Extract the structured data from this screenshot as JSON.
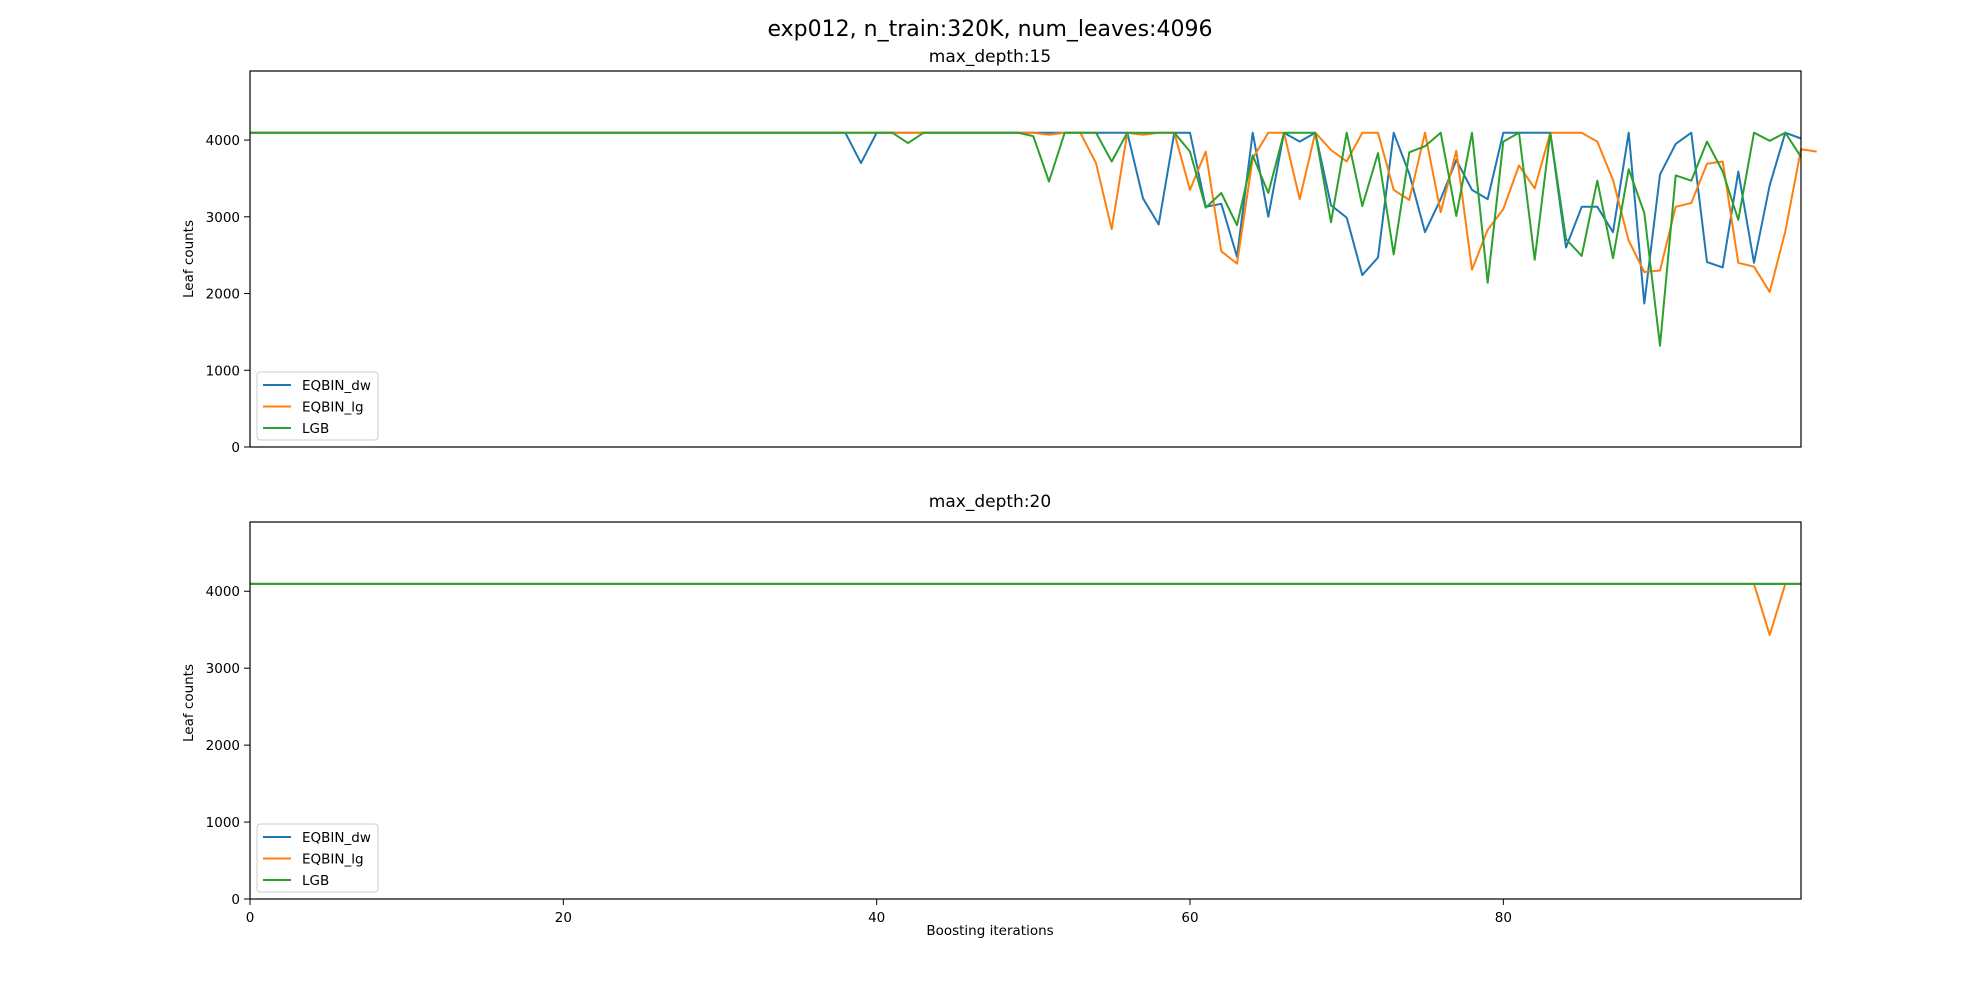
{
  "figure": {
    "title": "exp012, n_train:320K, num_leaves:4096"
  },
  "chart_data": [
    {
      "type": "line",
      "title": "max_depth:15",
      "xlabel": "",
      "ylabel": "Leaf counts",
      "xlim": [
        0,
        99
      ],
      "ylim": [
        0,
        4900
      ],
      "xticks": [],
      "yticks": [
        0,
        1000,
        2000,
        3000,
        4000
      ],
      "legend_loc": "lower left",
      "x_start": 0,
      "series": [
        {
          "name": "EQBIN_dw",
          "color": "#1f77b4",
          "values": [
            4096,
            4096,
            4096,
            4096,
            4096,
            4096,
            4096,
            4096,
            4096,
            4096,
            4096,
            4096,
            4096,
            4096,
            4096,
            4096,
            4096,
            4096,
            4096,
            4096,
            4096,
            4096,
            4096,
            4096,
            4096,
            4096,
            4096,
            4096,
            4096,
            4096,
            4096,
            4096,
            4096,
            4096,
            4096,
            4096,
            4096,
            4096,
            4096,
            3700,
            4096,
            4096,
            4096,
            4096,
            4096,
            4096,
            4096,
            4096,
            4096,
            4096,
            4096,
            4096,
            4096,
            4096,
            4096,
            4096,
            4096,
            3240,
            2900,
            4096,
            4096,
            3130,
            3170,
            2480,
            4096,
            3000,
            4096,
            3980,
            4096,
            3150,
            2990,
            2240,
            2470,
            4096,
            3560,
            2800,
            3230,
            3740,
            3350,
            3230,
            4096,
            4096,
            4096,
            4096,
            2600,
            3130,
            3130,
            2800,
            4096,
            1870,
            3550,
            3950,
            4096,
            2410,
            2340,
            3590,
            2400,
            3410,
            4096,
            4020
          ]
        },
        {
          "name": "EQBIN_lg",
          "color": "#ff7f0e",
          "values": [
            4096,
            4096,
            4096,
            4096,
            4096,
            4096,
            4096,
            4096,
            4096,
            4096,
            4096,
            4096,
            4096,
            4096,
            4096,
            4096,
            4096,
            4096,
            4096,
            4096,
            4096,
            4096,
            4096,
            4096,
            4096,
            4096,
            4096,
            4096,
            4096,
            4096,
            4096,
            4096,
            4096,
            4096,
            4096,
            4096,
            4096,
            4096,
            4096,
            4096,
            4096,
            4096,
            4096,
            4096,
            4096,
            4096,
            4096,
            4096,
            4096,
            4096,
            4096,
            4070,
            4096,
            4096,
            3700,
            2840,
            4096,
            4070,
            4096,
            4096,
            3350,
            3850,
            2550,
            2390,
            3760,
            4096,
            4096,
            3230,
            4096,
            3870,
            3720,
            4096,
            4096,
            3350,
            3220,
            4096,
            3060,
            3860,
            2310,
            2830,
            3100,
            3670,
            3370,
            4096,
            4096,
            4096,
            3980,
            3480,
            2690,
            2280,
            2300,
            3130,
            3180,
            3690,
            3720,
            2400,
            2350,
            2020,
            2810,
            3880,
            3850
          ]
        },
        {
          "name": "LGB",
          "color": "#2ca02c",
          "values": [
            4096,
            4096,
            4096,
            4096,
            4096,
            4096,
            4096,
            4096,
            4096,
            4096,
            4096,
            4096,
            4096,
            4096,
            4096,
            4096,
            4096,
            4096,
            4096,
            4096,
            4096,
            4096,
            4096,
            4096,
            4096,
            4096,
            4096,
            4096,
            4096,
            4096,
            4096,
            4096,
            4096,
            4096,
            4096,
            4096,
            4096,
            4096,
            4096,
            4096,
            4096,
            4096,
            3960,
            4096,
            4096,
            4096,
            4096,
            4096,
            4096,
            4096,
            4050,
            3460,
            4096,
            4096,
            4096,
            3720,
            4096,
            4096,
            4096,
            4096,
            3850,
            3120,
            3310,
            2890,
            3800,
            3310,
            4096,
            4096,
            4096,
            2930,
            4096,
            3140,
            3830,
            2510,
            3840,
            3920,
            4096,
            3010,
            4096,
            2140,
            3980,
            4096,
            2440,
            4096,
            2710,
            2490,
            3470,
            2460,
            3620,
            3050,
            1320,
            3540,
            3470,
            3980,
            3590,
            2960,
            4096,
            3990,
            4096,
            3780
          ]
        }
      ]
    },
    {
      "type": "line",
      "title": "max_depth:20",
      "xlabel": "Boosting iterations",
      "ylabel": "Leaf counts",
      "xlim": [
        0,
        99
      ],
      "ylim": [
        0,
        4900
      ],
      "xticks": [
        0,
        20,
        40,
        60,
        80
      ],
      "yticks": [
        0,
        1000,
        2000,
        3000,
        4000
      ],
      "legend_loc": "lower left",
      "x_start": 0,
      "series": [
        {
          "name": "EQBIN_dw",
          "color": "#1f77b4",
          "values": [
            4096,
            4096,
            4096,
            4096,
            4096,
            4096,
            4096,
            4096,
            4096,
            4096,
            4096,
            4096,
            4096,
            4096,
            4096,
            4096,
            4096,
            4096,
            4096,
            4096,
            4096,
            4096,
            4096,
            4096,
            4096,
            4096,
            4096,
            4096,
            4096,
            4096,
            4096,
            4096,
            4096,
            4096,
            4096,
            4096,
            4096,
            4096,
            4096,
            4096,
            4096,
            4096,
            4096,
            4096,
            4096,
            4096,
            4096,
            4096,
            4096,
            4096,
            4096,
            4096,
            4096,
            4096,
            4096,
            4096,
            4096,
            4096,
            4096,
            4096,
            4096,
            4096,
            4096,
            4096,
            4096,
            4096,
            4096,
            4096,
            4096,
            4096,
            4096,
            4096,
            4096,
            4096,
            4096,
            4096,
            4096,
            4096,
            4096,
            4096,
            4096,
            4096,
            4096,
            4096,
            4096,
            4096,
            4096,
            4096,
            4096,
            4096,
            4096,
            4096,
            4096,
            4096,
            4096,
            4096,
            4096,
            4096,
            4096,
            4096
          ]
        },
        {
          "name": "EQBIN_lg",
          "color": "#ff7f0e",
          "values": [
            4096,
            4096,
            4096,
            4096,
            4096,
            4096,
            4096,
            4096,
            4096,
            4096,
            4096,
            4096,
            4096,
            4096,
            4096,
            4096,
            4096,
            4096,
            4096,
            4096,
            4096,
            4096,
            4096,
            4096,
            4096,
            4096,
            4096,
            4096,
            4096,
            4096,
            4096,
            4096,
            4096,
            4096,
            4096,
            4096,
            4096,
            4096,
            4096,
            4096,
            4096,
            4096,
            4096,
            4096,
            4096,
            4096,
            4096,
            4096,
            4096,
            4096,
            4096,
            4096,
            4096,
            4096,
            4096,
            4096,
            4096,
            4096,
            4096,
            4096,
            4096,
            4096,
            4096,
            4096,
            4096,
            4096,
            4096,
            4096,
            4096,
            4096,
            4096,
            4096,
            4096,
            4096,
            4096,
            4096,
            4096,
            4096,
            4096,
            4096,
            4096,
            4096,
            4096,
            4096,
            4096,
            4096,
            4096,
            4096,
            4096,
            4096,
            4096,
            4096,
            4096,
            4096,
            4096,
            4096,
            4096,
            3430,
            4096,
            4096
          ]
        },
        {
          "name": "LGB",
          "color": "#2ca02c",
          "values": [
            4096,
            4096,
            4096,
            4096,
            4096,
            4096,
            4096,
            4096,
            4096,
            4096,
            4096,
            4096,
            4096,
            4096,
            4096,
            4096,
            4096,
            4096,
            4096,
            4096,
            4096,
            4096,
            4096,
            4096,
            4096,
            4096,
            4096,
            4096,
            4096,
            4096,
            4096,
            4096,
            4096,
            4096,
            4096,
            4096,
            4096,
            4096,
            4096,
            4096,
            4096,
            4096,
            4096,
            4096,
            4096,
            4096,
            4096,
            4096,
            4096,
            4096,
            4096,
            4096,
            4096,
            4096,
            4096,
            4096,
            4096,
            4096,
            4096,
            4096,
            4096,
            4096,
            4096,
            4096,
            4096,
            4096,
            4096,
            4096,
            4096,
            4096,
            4096,
            4096,
            4096,
            4096,
            4096,
            4096,
            4096,
            4096,
            4096,
            4096,
            4096,
            4096,
            4096,
            4096,
            4096,
            4096,
            4096,
            4096,
            4096,
            4096,
            4096,
            4096,
            4096,
            4096,
            4096,
            4096,
            4096,
            4096,
            4096,
            4096
          ]
        }
      ]
    }
  ]
}
